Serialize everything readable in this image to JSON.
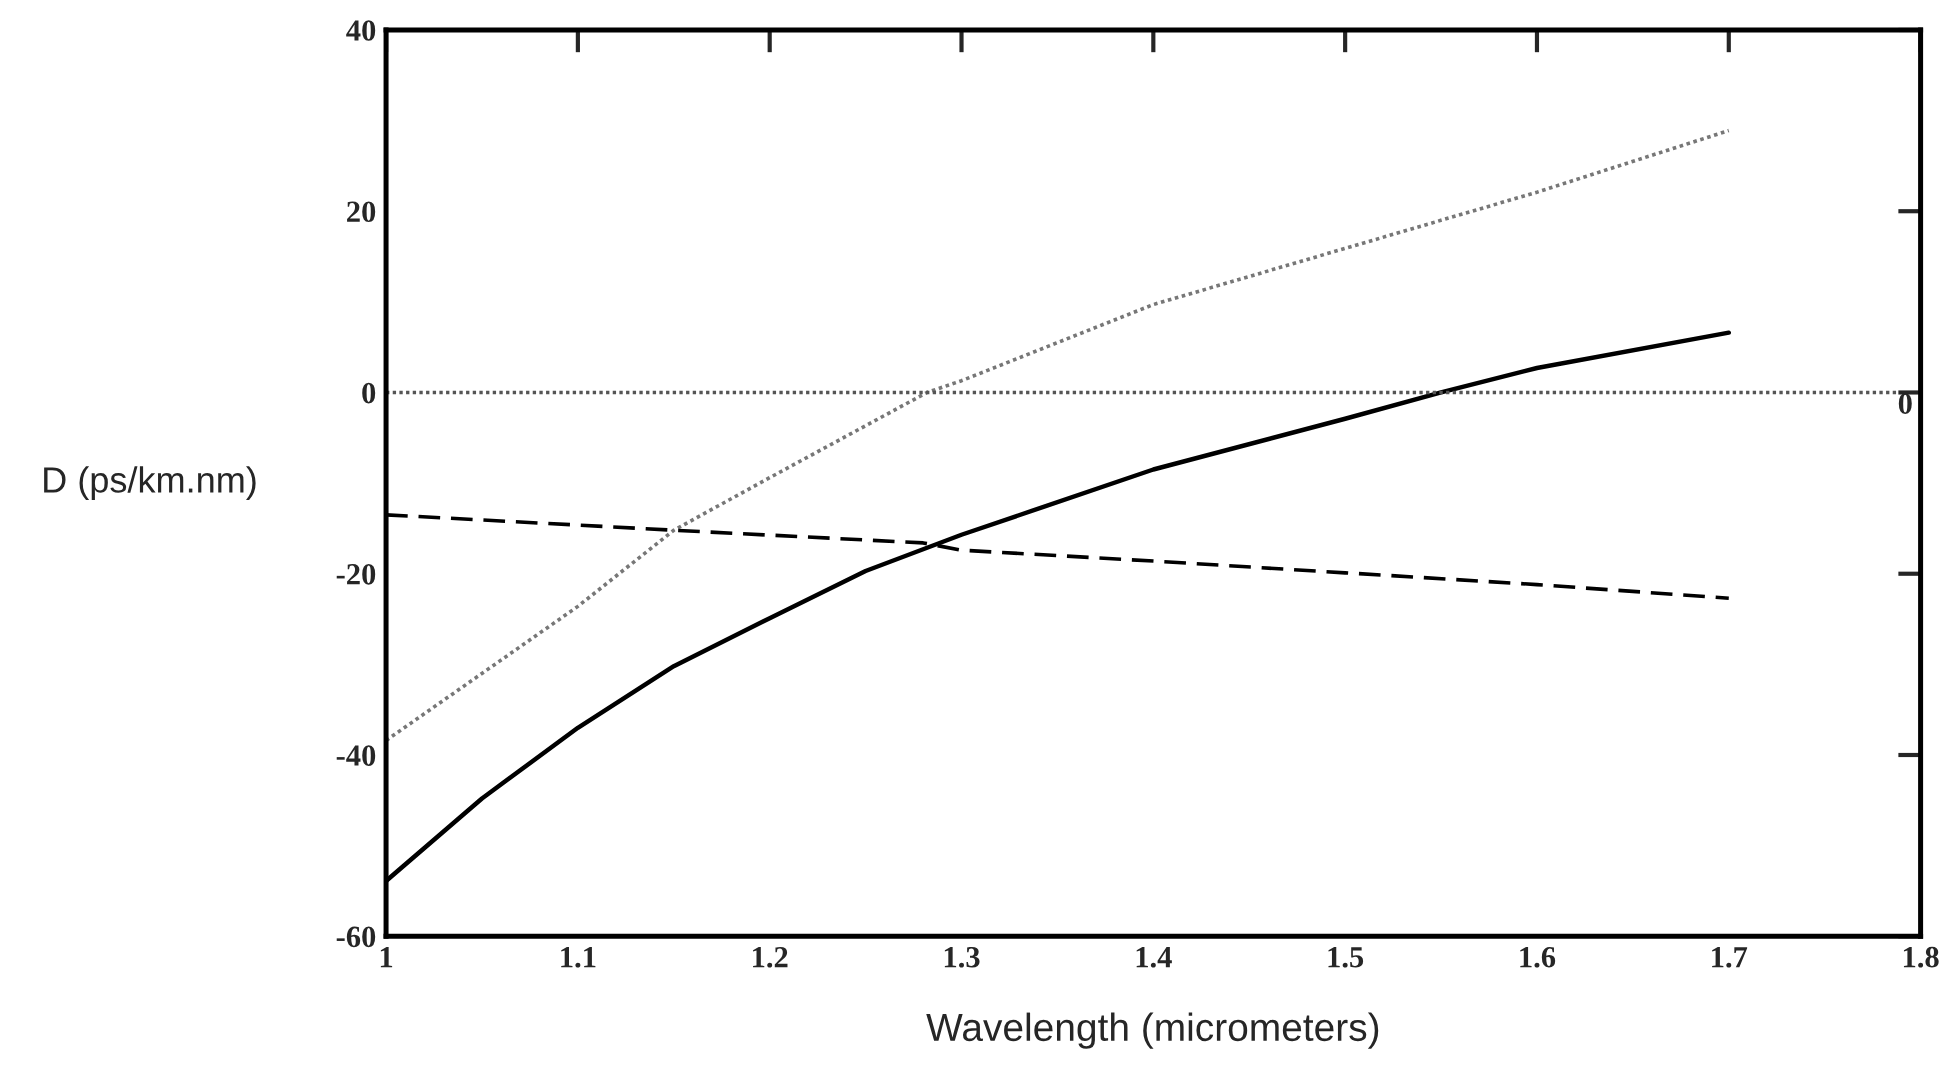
{
  "chart_data": {
    "type": "line",
    "xlabel": "Wavelength (micrometers)",
    "ylabel": "D (ps/km.nm)",
    "xlim": [
      1,
      1.8
    ],
    "xticks": [
      1,
      1.1,
      1.2,
      1.3,
      1.4,
      1.5,
      1.6,
      1.7,
      1.8
    ],
    "ylim": [
      -60,
      40
    ],
    "yticks": [
      -60,
      -40,
      -20,
      0,
      20,
      40
    ],
    "x": [
      1,
      1.05,
      1.1,
      1.15,
      1.2,
      1.25,
      1.3,
      1.4,
      1.5,
      1.55,
      1.6,
      1.7
    ],
    "series": [
      {
        "color": "#000000",
        "line_style": "solid",
        "values": [
          -53.9,
          -44.8,
          -37,
          -30.2,
          -24.9,
          -19.7,
          -15.7,
          -8.5,
          -2.9,
          0,
          2.7,
          6.6
        ]
      },
      {
        "color": "#777777",
        "line_style": "dotted",
        "x": [
          1,
          1.1,
          1.15,
          1.2,
          1.282,
          1.3,
          1.4,
          1.5,
          1.6,
          1.7
        ],
        "values": [
          -38.4,
          -23.6,
          -15.2,
          -9.4,
          0,
          1.3,
          9.7,
          15.9,
          22.1,
          28.9
        ]
      },
      {
        "color": "#000000",
        "line_style": "dashed",
        "x": [
          1,
          1.15,
          1.28,
          1.3,
          1.4,
          1.5,
          1.6,
          1.7
        ],
        "values": [
          -13.5,
          -15.2,
          -16.6,
          -17.4,
          -18.6,
          -19.9,
          -21.2,
          -22.7
        ]
      }
    ],
    "ref_lines": [
      {
        "axis": "y",
        "value": 0,
        "label": "0",
        "color": "#555555",
        "line_style": "dotted"
      }
    ],
    "grid": false,
    "legend": false
  }
}
